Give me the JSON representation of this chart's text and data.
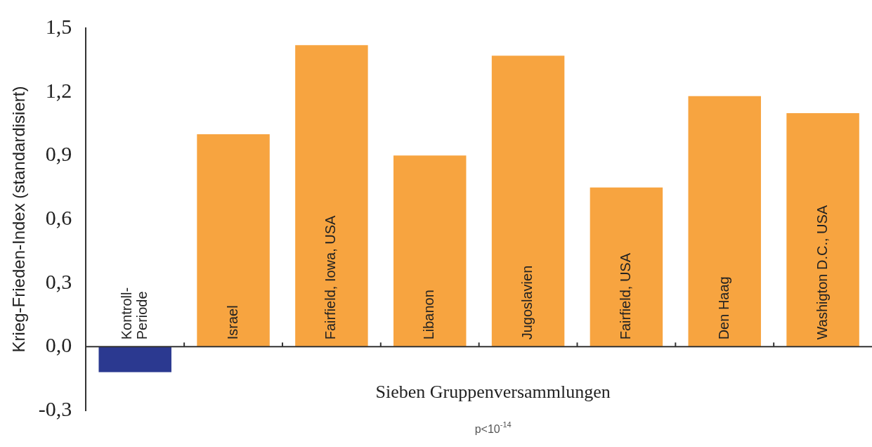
{
  "chart_data": {
    "type": "bar",
    "ylabel": "Krieg-Frieden-Index (standardisiert)",
    "xlabel": "Sieben Gruppenversammlungen",
    "categories": [
      "Kontroll-\nPeriode",
      "Israel",
      "Fairfield, Iowa, USA",
      "Libanon",
      "Jugoslavien",
      "Fairfield, USA",
      "Den Haag",
      "Washigton D.C., USA"
    ],
    "values": [
      -0.12,
      1.0,
      1.42,
      0.9,
      1.37,
      0.75,
      1.18,
      1.1
    ],
    "colors": [
      "#2b3990",
      "#f7a440",
      "#f7a440",
      "#f7a440",
      "#f7a440",
      "#f7a440",
      "#f7a440",
      "#f7a440"
    ],
    "ylim": [
      -0.3,
      1.5
    ],
    "yticks": [
      {
        "value": -0.3,
        "label": "-0,3"
      },
      {
        "value": 0,
        "label": "0,0"
      },
      {
        "value": 0.3,
        "label": "0,3"
      },
      {
        "value": 0.6,
        "label": "0,6"
      },
      {
        "value": 0.9,
        "label": "0,9"
      },
      {
        "value": 1.2,
        "label": "1,2"
      },
      {
        "value": 1.5,
        "label": "1,5"
      }
    ],
    "annotations": [
      "p<10$^{-14}$"
    ]
  }
}
